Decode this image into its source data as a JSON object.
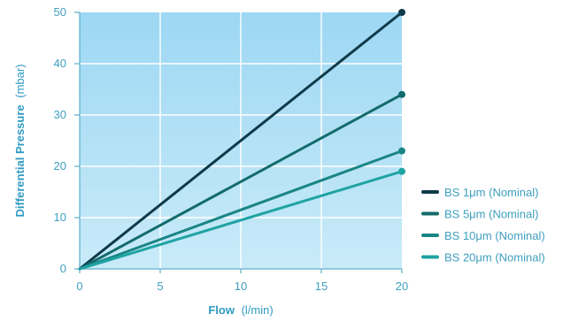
{
  "chart_data": {
    "type": "line",
    "title": "",
    "xlabel": {
      "main": "Flow",
      "unit": "(l/min)"
    },
    "ylabel": {
      "main": "Differential Pressure",
      "unit": "(mbar)"
    },
    "xlim": [
      0,
      20
    ],
    "ylim": [
      0,
      50
    ],
    "xticks": [
      "0",
      "5",
      "10",
      "15",
      "20"
    ],
    "yticks": [
      "0",
      "10",
      "20",
      "30",
      "40",
      "50"
    ],
    "grid": true,
    "legend_position": "right",
    "colors": {
      "plot_top": "#9dd7f3",
      "plot_bottom": "#c9ebf8",
      "grid": "#ffffff",
      "axis": "#3f9fc0"
    },
    "series": [
      {
        "name": "BS 1μm (Nominal)",
        "color": "#0e3a4a",
        "x": [
          0,
          20
        ],
        "y": [
          0,
          50
        ]
      },
      {
        "name": "BS 5μm (Nominal)",
        "color": "#136b6b",
        "x": [
          0,
          20
        ],
        "y": [
          0,
          34
        ]
      },
      {
        "name": "BS 10μm (Nominal)",
        "color": "#1a8585",
        "x": [
          0,
          20
        ],
        "y": [
          0,
          23
        ]
      },
      {
        "name": "BS 20μm (Nominal)",
        "color": "#1fa3a3",
        "x": [
          0,
          20
        ],
        "y": [
          0,
          19
        ]
      }
    ]
  }
}
